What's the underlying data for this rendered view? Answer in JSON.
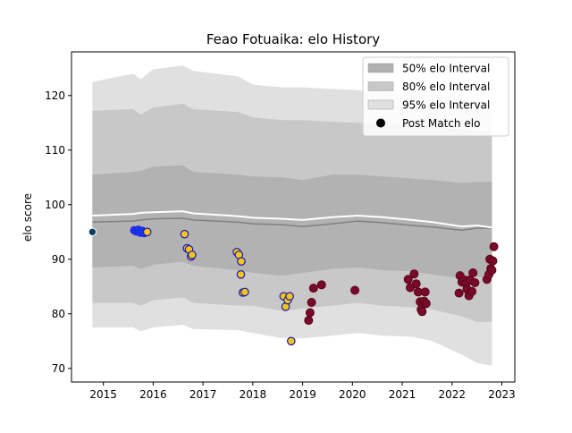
{
  "chart_data": {
    "type": "scatter",
    "title": "Feao Fotuaika: elo History",
    "xlabel": "",
    "ylabel": "elo score",
    "xlim": [
      2014.36,
      2023.26
    ],
    "ylim": [
      67.5,
      128.0
    ],
    "x_ticks": [
      2015,
      2016,
      2017,
      2018,
      2019,
      2020,
      2021,
      2022,
      2023
    ],
    "y_ticks": [
      70,
      80,
      90,
      100,
      110,
      120
    ],
    "grid": false,
    "legend_position": "top-right",
    "legend": [
      {
        "label": "50% elo Interval",
        "kind": "band",
        "color": "#b0b0b0"
      },
      {
        "label": "80% elo Interval",
        "kind": "band",
        "color": "#c8c8c8"
      },
      {
        "label": "95% elo Interval",
        "kind": "band",
        "color": "#e0e0e0"
      },
      {
        "label": "Post Match elo",
        "kind": "marker",
        "color": "#000000"
      }
    ],
    "colors": {
      "band_95": "#e0e0e0",
      "band_80": "#c8c8c8",
      "band_50": "#b2b2b2",
      "median_line": "#808080",
      "mean_line": "#ffffff",
      "early_point_fill": "#0d3b66",
      "blue_point_fill": "#1a3fd1",
      "blue_point_edge": "#1a1aff",
      "gold_point_fill": "#f5c518",
      "gold_point_edge": "#1a1ab0",
      "maroon_point_fill": "#7a0a2a",
      "maroon_point_edge": "#5a0018"
    },
    "bands": {
      "x": [
        2014.78,
        2015.6,
        2015.75,
        2016.0,
        2016.6,
        2016.8,
        2017.7,
        2018.0,
        2018.6,
        2019.0,
        2019.6,
        2020.1,
        2020.6,
        2021.2,
        2021.6,
        2022.2,
        2022.5,
        2022.8
      ],
      "upper95": [
        122.5,
        124.0,
        123.0,
        124.8,
        125.5,
        124.5,
        123.5,
        122.0,
        121.5,
        121.5,
        121.2,
        121.0,
        120.5,
        120.0,
        120.0,
        119.5,
        119.0,
        118.5
      ],
      "upper80": [
        117.2,
        117.5,
        116.5,
        117.8,
        118.5,
        117.5,
        117.0,
        116.0,
        115.5,
        115.5,
        115.2,
        115.0,
        114.8,
        114.5,
        114.3,
        113.8,
        113.5,
        113.5
      ],
      "upper50": [
        105.5,
        106.0,
        106.2,
        107.0,
        107.2,
        106.0,
        105.5,
        105.2,
        105.0,
        104.5,
        105.5,
        105.5,
        105.2,
        104.8,
        104.5,
        104.0,
        104.2,
        104.2
      ],
      "lower50": [
        88.5,
        88.8,
        88.2,
        89.0,
        89.5,
        88.8,
        88.0,
        87.5,
        87.0,
        87.5,
        88.2,
        88.5,
        88.0,
        87.8,
        87.2,
        86.5,
        86.8,
        86.5
      ],
      "lower80": [
        82.0,
        82.0,
        81.5,
        82.5,
        83.0,
        82.0,
        81.5,
        81.5,
        80.5,
        81.0,
        81.5,
        82.0,
        81.5,
        81.2,
        80.8,
        79.5,
        78.5,
        78.5
      ],
      "lower95": [
        77.5,
        77.5,
        76.8,
        77.5,
        78.0,
        77.2,
        77.0,
        76.5,
        75.5,
        75.5,
        76.0,
        76.5,
        76.0,
        75.8,
        75.0,
        72.5,
        71.0,
        70.5
      ],
      "median": [
        96.8,
        97.0,
        97.2,
        97.4,
        97.5,
        97.2,
        96.8,
        96.5,
        96.3,
        96.0,
        96.5,
        97.0,
        96.7,
        96.2,
        95.9,
        95.3,
        95.7,
        95.7
      ],
      "mean": [
        98.0,
        98.3,
        98.5,
        98.6,
        98.8,
        98.4,
        97.9,
        97.6,
        97.4,
        97.2,
        97.7,
        98.0,
        97.7,
        97.2,
        96.8,
        96.0,
        96.2,
        95.8
      ]
    },
    "series": [
      {
        "group": "early",
        "points": [
          [
            2014.78,
            95.0
          ]
        ]
      },
      {
        "group": "blue",
        "points": [
          [
            2015.62,
            95.3
          ],
          [
            2015.66,
            95.1
          ],
          [
            2015.7,
            95.4
          ],
          [
            2015.74,
            94.9
          ],
          [
            2015.78,
            95.2
          ],
          [
            2015.82,
            94.8
          ]
        ]
      },
      {
        "group": "gold",
        "points": [
          [
            2015.88,
            95.0
          ],
          [
            2016.63,
            94.6
          ],
          [
            2016.68,
            92.0
          ],
          [
            2016.72,
            91.8
          ],
          [
            2016.76,
            90.5
          ],
          [
            2016.78,
            90.8
          ],
          [
            2017.68,
            91.3
          ],
          [
            2017.72,
            90.8
          ],
          [
            2017.76,
            87.2
          ],
          [
            2017.77,
            89.6
          ],
          [
            2017.8,
            83.9
          ],
          [
            2017.84,
            84.0
          ],
          [
            2018.62,
            83.2
          ],
          [
            2018.66,
            81.3
          ],
          [
            2018.7,
            82.5
          ],
          [
            2018.74,
            83.2
          ],
          [
            2018.77,
            75.0
          ]
        ]
      },
      {
        "group": "maroon",
        "points": [
          [
            2019.12,
            78.8
          ],
          [
            2019.15,
            80.2
          ],
          [
            2019.18,
            82.1
          ],
          [
            2019.22,
            84.7
          ],
          [
            2019.38,
            85.3
          ],
          [
            2020.05,
            84.3
          ],
          [
            2021.12,
            86.3
          ],
          [
            2021.16,
            84.8
          ],
          [
            2021.24,
            87.3
          ],
          [
            2021.28,
            85.5
          ],
          [
            2021.32,
            84.0
          ],
          [
            2021.36,
            82.2
          ],
          [
            2021.38,
            80.8
          ],
          [
            2021.4,
            80.4
          ],
          [
            2021.44,
            82.3
          ],
          [
            2021.46,
            84.0
          ],
          [
            2021.48,
            81.9
          ],
          [
            2022.14,
            83.8
          ],
          [
            2022.16,
            87.0
          ],
          [
            2022.2,
            85.8
          ],
          [
            2022.24,
            86.2
          ],
          [
            2022.28,
            85.5
          ],
          [
            2022.3,
            84.5
          ],
          [
            2022.34,
            83.3
          ],
          [
            2022.36,
            86.2
          ],
          [
            2022.4,
            84.1
          ],
          [
            2022.42,
            87.5
          ],
          [
            2022.46,
            85.7
          ],
          [
            2022.7,
            86.3
          ],
          [
            2022.74,
            87.2
          ],
          [
            2022.76,
            90.0
          ],
          [
            2022.78,
            88.3
          ],
          [
            2022.8,
            88.0
          ],
          [
            2022.82,
            89.7
          ],
          [
            2022.84,
            92.3
          ]
        ]
      }
    ]
  }
}
